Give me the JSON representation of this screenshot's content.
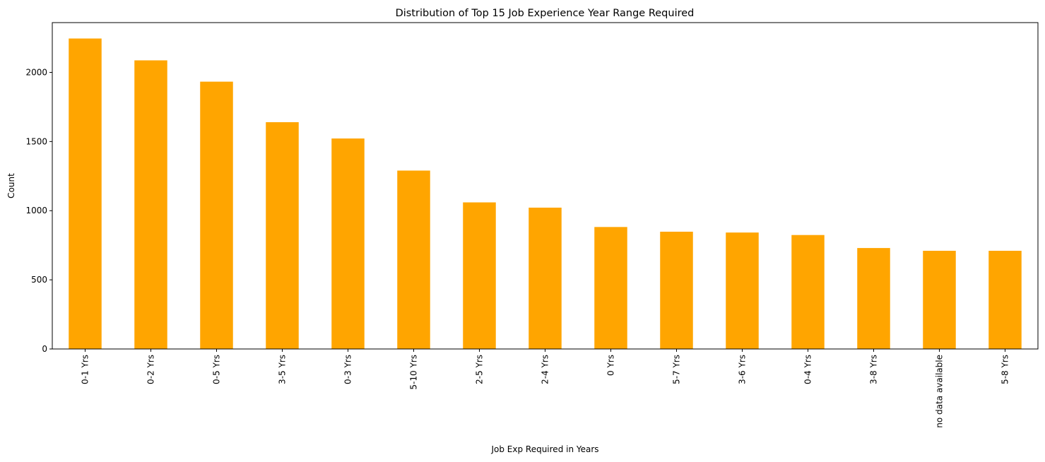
{
  "chart_data": {
    "type": "bar",
    "title": "Distribution of Top 15 Job Experience Year Range Required",
    "xlabel": "Job Exp Required in Years",
    "ylabel": "Count",
    "categories": [
      "0-1 Yrs",
      "0-2 Yrs",
      "0-5 Yrs",
      "3-5 Yrs",
      "0-3 Yrs",
      "5-10 Yrs",
      "2-5 Yrs",
      "2-4 Yrs",
      "0 Yrs",
      "5-7 Yrs",
      "3-6 Yrs",
      "0-4 Yrs",
      "3-8 Yrs",
      "no data available",
      "5-8 Yrs"
    ],
    "values": [
      2245,
      2087,
      1933,
      1640,
      1522,
      1290,
      1060,
      1022,
      882,
      848,
      842,
      824,
      730,
      710,
      710
    ],
    "ylim": [
      0,
      2360
    ],
    "yticks": [
      0,
      500,
      1000,
      1500,
      2000
    ],
    "bar_color": "#ffa500",
    "grid": false,
    "legend": "none"
  }
}
